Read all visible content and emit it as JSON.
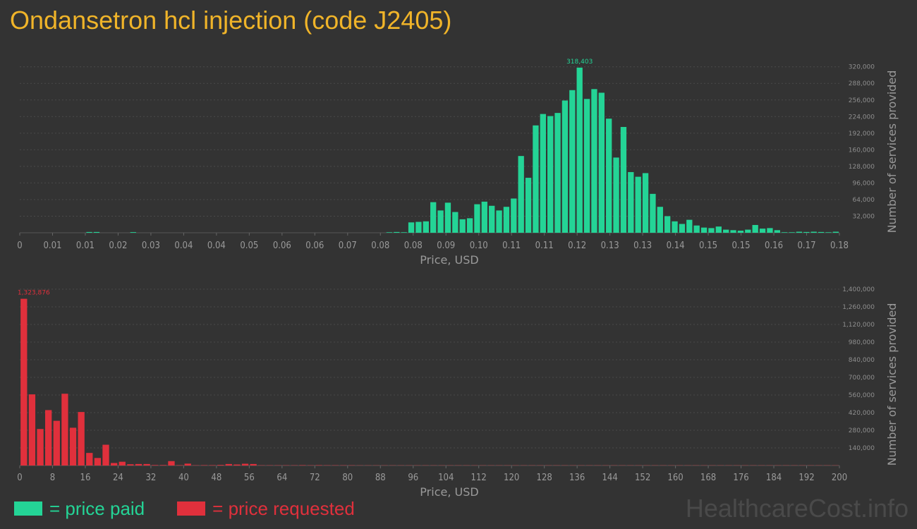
{
  "title": "Ondansetron hcl injection (code J2405)",
  "colors": {
    "paid": "#24d496",
    "requested": "#e0303c",
    "title": "#f0b429",
    "background": "#333333"
  },
  "legend": {
    "paid_label": "= price paid",
    "requested_label": "= price requested"
  },
  "watermark": "HealthcareCost.info",
  "chart_data": [
    {
      "type": "bar",
      "series_color": "paid",
      "xlabel": "Price, USD",
      "ylabel": "Number of services provided",
      "x_tick_labels": [
        "0",
        "0.01",
        "0.01",
        "0.02",
        "0.03",
        "0.04",
        "0.04",
        "0.05",
        "0.06",
        "0.06",
        "0.07",
        "0.08",
        "0.08",
        "0.09",
        "0.10",
        "0.11",
        "0.11",
        "0.12",
        "0.13",
        "0.13",
        "0.14",
        "0.15",
        "0.15",
        "0.16",
        "0.17",
        "0.18"
      ],
      "y_tick_labels": [
        "32,000",
        "64,000",
        "96,000",
        "128,000",
        "160,000",
        "192,000",
        "224,000",
        "256,000",
        "288,000",
        "320,000"
      ],
      "ylim": [
        0,
        340000
      ],
      "peak_label": "318,403",
      "values": [
        0,
        0,
        0,
        0,
        0,
        0,
        0,
        0,
        0,
        1500,
        1500,
        0,
        0,
        0,
        0,
        1200,
        0,
        0,
        0,
        0,
        0,
        0,
        0,
        0,
        0,
        0,
        0,
        0,
        0,
        0,
        0,
        0,
        0,
        0,
        0,
        0,
        0,
        0,
        0,
        0,
        0,
        0,
        0,
        0,
        0,
        0,
        0,
        0,
        0,
        0,
        1000,
        1500,
        1000,
        20000,
        21000,
        22000,
        59000,
        43000,
        58000,
        40000,
        26000,
        28000,
        55000,
        60000,
        52000,
        43000,
        50000,
        66000,
        148000,
        106000,
        207000,
        229000,
        225000,
        231000,
        255000,
        275000,
        318403,
        258000,
        277000,
        270000,
        220000,
        145000,
        204000,
        117000,
        108000,
        115000,
        75000,
        50000,
        32000,
        22000,
        17000,
        25000,
        14000,
        10000,
        9000,
        12000,
        6000,
        5000,
        4000,
        6000,
        15000,
        8000,
        9000,
        5000,
        1000,
        1000,
        2000,
        1500,
        2000,
        1500,
        1000,
        2000
      ]
    },
    {
      "type": "bar",
      "series_color": "requested",
      "xlabel": "Price, USD",
      "ylabel": "Number of services provided",
      "x_tick_labels": [
        "0",
        "8",
        "16",
        "24",
        "32",
        "40",
        "48",
        "56",
        "64",
        "72",
        "80",
        "88",
        "96",
        "104",
        "112",
        "120",
        "128",
        "136",
        "144",
        "152",
        "160",
        "168",
        "176",
        "184",
        "192",
        "200"
      ],
      "y_tick_labels": [
        "140,000",
        "280,000",
        "420,000",
        "560,000",
        "700,000",
        "840,000",
        "980,000",
        "1,120,000",
        "1,260,000",
        "1,400,000"
      ],
      "ylim": [
        0,
        1400000
      ],
      "peak_label": "1,323,876",
      "values": [
        1323876,
        565000,
        290000,
        440000,
        355000,
        570000,
        300000,
        425000,
        100000,
        60000,
        165000,
        20000,
        30000,
        10000,
        12000,
        12000,
        4000,
        4000,
        35000,
        3000,
        15000,
        2000,
        3000,
        3000,
        5000,
        12000,
        8000,
        14000,
        12000,
        2000,
        2000,
        2000,
        2000,
        2000,
        3000,
        2000,
        3000,
        2000,
        2000,
        2000,
        2000,
        1500,
        1500,
        1500,
        1500,
        1500,
        1500,
        1500,
        1500,
        1500,
        1500,
        1500,
        1500,
        1500,
        1500,
        1500,
        1500,
        1500,
        1500,
        1500,
        1500,
        1500,
        1500,
        1500,
        1500,
        1500,
        1500,
        1500,
        1500,
        1500,
        1500,
        1500,
        1500,
        1500,
        1500,
        1500,
        1500,
        1500,
        1500,
        1500,
        1500,
        1500,
        1500,
        1500,
        1500,
        1500,
        1500,
        1500,
        1500,
        1500,
        1500,
        1500,
        1500,
        1500,
        1500,
        1500,
        1500,
        1500,
        1500,
        1500
      ]
    }
  ]
}
